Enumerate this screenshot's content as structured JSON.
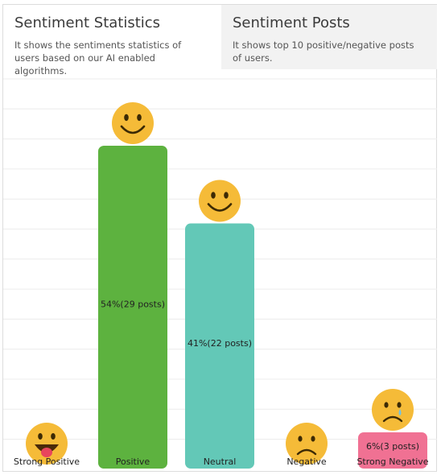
{
  "tabs": {
    "statistics": {
      "title": "Sentiment Statistics",
      "description": "It shows the sentiments statistics of users based on our AI enabled algorithms."
    },
    "posts": {
      "title": "Sentiment Posts",
      "description": "It shows top 10 positive/negative posts of users."
    }
  },
  "colors": {
    "positive": "#5db23f",
    "neutral": "#63c8b7",
    "negative_strong": "#f07193",
    "emoji": "#f5bb38",
    "grid": "#ececec"
  },
  "chart_data": {
    "type": "bar",
    "categories": [
      "Strong Positive",
      "Positive",
      "Neutral",
      "Negative",
      "Strong Negative"
    ],
    "values": [
      0,
      54,
      41,
      0,
      6
    ],
    "data_labels": [
      "",
      "54%(29 posts)",
      "41%(22 posts)",
      "",
      "6%(3 posts)"
    ],
    "icons": [
      "tongue-out-emoji-icon",
      "smile-emoji-icon",
      "smile-emoji-icon",
      "frown-emoji-icon",
      "crying-emoji-icon"
    ],
    "grid": true,
    "ylim": [
      0,
      56
    ]
  }
}
